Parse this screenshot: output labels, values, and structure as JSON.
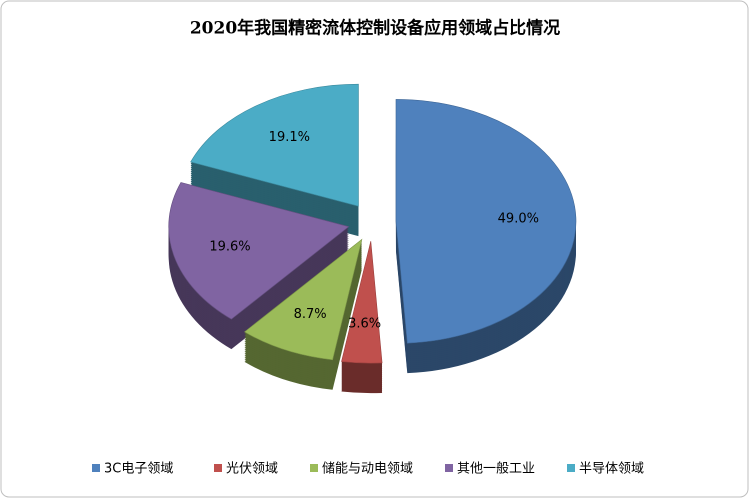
{
  "chart_data": {
    "type": "pie",
    "title": "2020年我国精密流体控制设备应用领域占比情况",
    "categories": [
      "3C电子领域",
      "光伏领域",
      "储能与动电领域",
      "其他一般工业",
      "半导体领域"
    ],
    "values": [
      49.0,
      3.6,
      8.7,
      19.6,
      19.1
    ],
    "value_labels": [
      "49.0%",
      "3.6%",
      "8.7%",
      "19.6%",
      "19.1%"
    ],
    "colors": [
      "#4f81bd",
      "#c0504d",
      "#9bbb59",
      "#8064a2",
      "#4bacc6"
    ]
  }
}
